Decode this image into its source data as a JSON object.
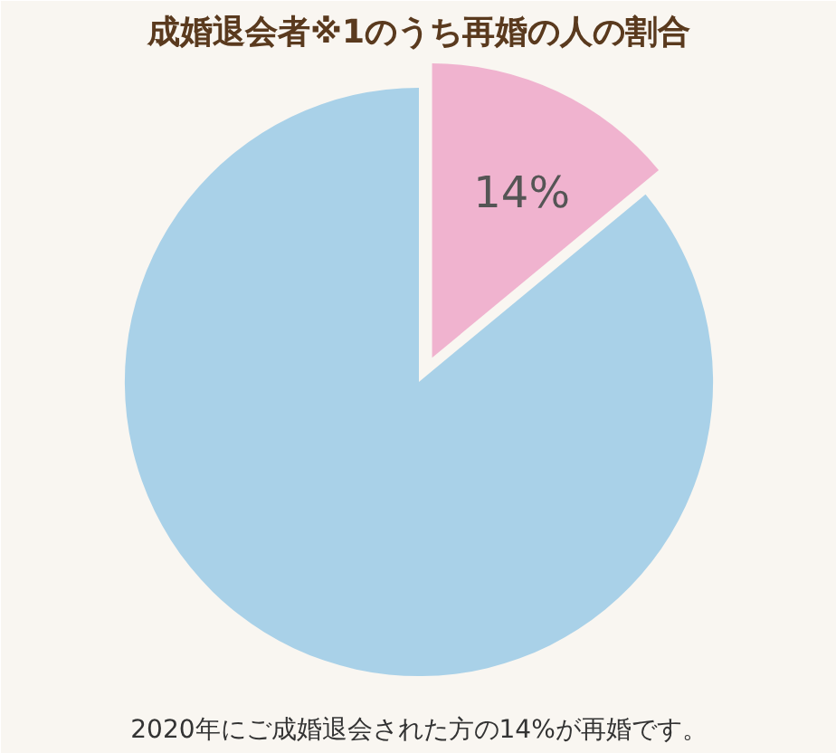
{
  "chart_data": {
    "type": "pie",
    "title": "成婚退会者※1のうち再婚の人の割合",
    "categories": [
      null,
      null
    ],
    "values": [
      14,
      86
    ],
    "colors": [
      "#f0b3cf",
      "#a9d1e8"
    ],
    "value_labels": [
      "14%",
      null
    ],
    "annotations": [
      "2020年にご成婚退会された方の14%が再婚です。"
    ]
  }
}
